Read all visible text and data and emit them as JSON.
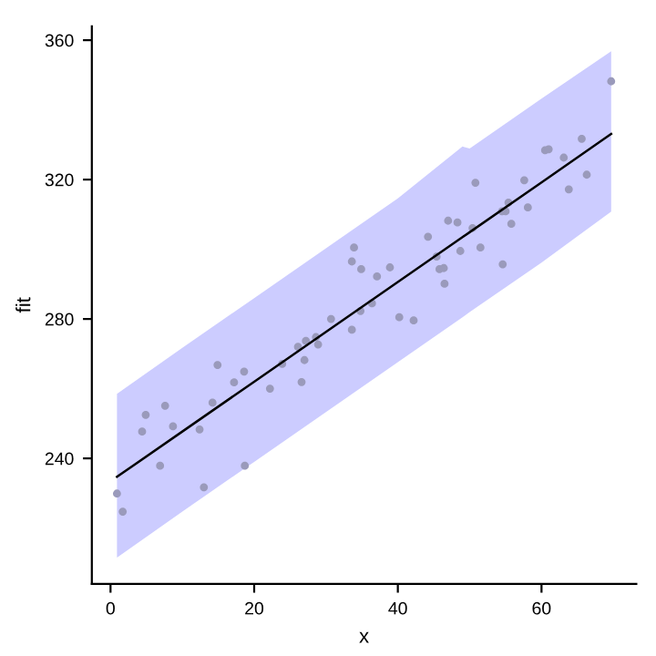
{
  "chart_data": {
    "type": "scatter",
    "xlabel": "x",
    "ylabel": "fit",
    "xlim": [
      -2.6,
      73.2
    ],
    "ylim": [
      204,
      364
    ],
    "xticks": [
      0,
      20,
      40,
      60
    ],
    "yticks": [
      240,
      280,
      320,
      360
    ],
    "grid": false,
    "series": [
      {
        "type": "scatter",
        "color": "#9a9abb",
        "marker": "circle",
        "x": [
          0.9,
          1.7,
          4.4,
          4.9,
          7.6,
          6.9,
          8.7,
          12.4,
          13.0,
          14.2,
          14.9,
          17.2,
          18.6,
          18.7,
          22.2,
          23.9,
          26.1,
          26.6,
          27.0,
          27.2,
          28.6,
          28.9,
          30.7,
          33.6,
          33.9,
          33.6,
          34.9,
          34.8,
          36.4,
          37.1,
          38.9,
          40.2,
          42.2,
          44.2,
          45.4,
          45.8,
          46.4,
          46.5,
          47.0,
          48.3,
          48.7,
          50.4,
          50.8,
          51.5,
          54.5,
          54.6,
          55.0,
          55.4,
          55.8,
          57.6,
          58.1,
          60.5,
          61.0,
          63.1,
          63.8,
          65.6,
          66.3,
          69.7
        ],
        "values": [
          229.9,
          224.7,
          247.7,
          252.5,
          255.1,
          237.9,
          249.2,
          248.3,
          231.7,
          256.0,
          266.8,
          261.8,
          264.9,
          237.9,
          260.0,
          267.1,
          272.0,
          261.9,
          268.2,
          273.7,
          274.8,
          272.7,
          280.0,
          276.9,
          300.5,
          296.5,
          294.3,
          282.3,
          284.5,
          292.2,
          294.8,
          280.5,
          279.6,
          303.6,
          297.9,
          294.3,
          294.6,
          290.1,
          308.2,
          307.7,
          299.5,
          306.1,
          319.1,
          300.5,
          310.9,
          295.7,
          310.9,
          313.4,
          307.3,
          319.8,
          312.0,
          328.4,
          328.7,
          326.3,
          317.2,
          331.7,
          321.4,
          348.2
        ]
      },
      {
        "type": "line",
        "color": "#000000",
        "marker": "none",
        "x": [
          0.9,
          10,
          20,
          30,
          40,
          49,
          50,
          60,
          69.7
        ],
        "values": [
          234.7,
          247.7,
          262.0,
          276.3,
          290.6,
          303.5,
          304.9,
          319.2,
          333.1
        ],
        "lower": [
          211.5,
          224.7,
          239.0,
          253.3,
          267.6,
          280.5,
          282.0,
          296.2,
          310.8
        ],
        "upper": [
          258.5,
          271.7,
          286.0,
          300.3,
          314.6,
          329.5,
          328.9,
          343.2,
          356.8
        ]
      }
    ]
  }
}
